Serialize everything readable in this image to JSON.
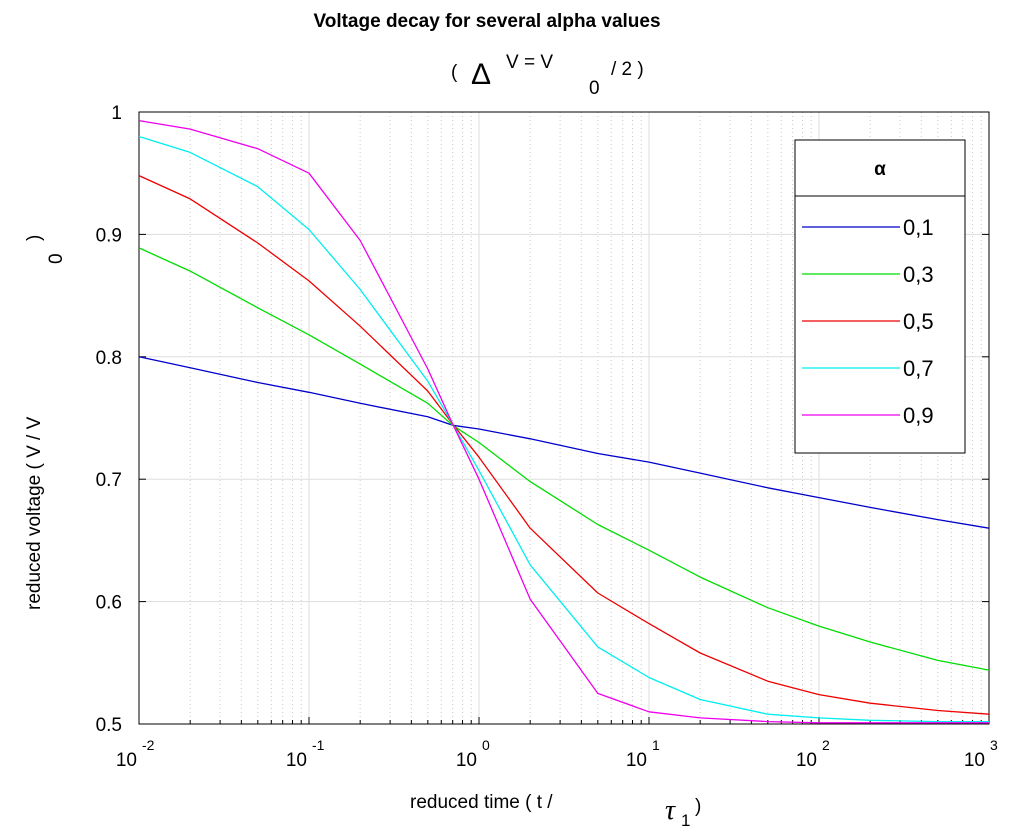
{
  "chart_data": {
    "type": "line",
    "title": "Voltage decay for several alpha values",
    "subtitle": {
      "open": "(",
      "delta": "Δ",
      "v_eq": "V = V",
      "zero": "0",
      "div2": "/ 2 )"
    },
    "xlabel": {
      "text": "reduced time ( t /",
      "tau": "τ",
      "sub": "1",
      "close": ")"
    },
    "ylabel": {
      "text": "reduced voltage ( V / V",
      "zero": "0",
      "close": ")"
    },
    "x_scale": "log",
    "xlim": [
      0.01,
      1000
    ],
    "ylim": [
      0.5,
      1.0
    ],
    "grid": true,
    "x_ticks": [
      {
        "base": "10",
        "exp": "-2",
        "value": 0.01
      },
      {
        "base": "10",
        "exp": "-1",
        "value": 0.1
      },
      {
        "base": "10",
        "exp": "0",
        "value": 1
      },
      {
        "base": "10",
        "exp": "1",
        "value": 10
      },
      {
        "base": "10",
        "exp": "2",
        "value": 100
      },
      {
        "base": "10",
        "exp": "3",
        "value": 1000
      }
    ],
    "y_ticks": [
      {
        "label": "0.5",
        "value": 0.5
      },
      {
        "label": "0.6",
        "value": 0.6
      },
      {
        "label": "0.7",
        "value": 0.7
      },
      {
        "label": "0.8",
        "value": 0.8
      },
      {
        "label": "0.9",
        "value": 0.9
      },
      {
        "label": "1",
        "value": 1.0
      }
    ],
    "legend_title": "α",
    "legend_position": "top-right",
    "x": [
      0.01,
      0.02,
      0.05,
      0.1,
      0.2,
      0.5,
      0.7,
      1,
      2,
      5,
      10,
      20,
      50,
      100,
      200,
      500,
      1000
    ],
    "series": [
      {
        "name": "0,1",
        "color": "#0000cc",
        "values": [
          0.8,
          0.791,
          0.779,
          0.771,
          0.762,
          0.751,
          0.744,
          0.741,
          0.733,
          0.721,
          0.714,
          0.705,
          0.693,
          0.685,
          0.677,
          0.667,
          0.66
        ]
      },
      {
        "name": "0,3",
        "color": "#00dd00",
        "values": [
          0.889,
          0.87,
          0.84,
          0.818,
          0.794,
          0.762,
          0.744,
          0.73,
          0.698,
          0.663,
          0.642,
          0.62,
          0.595,
          0.58,
          0.567,
          0.552,
          0.544
        ]
      },
      {
        "name": "0,5",
        "color": "#ee0000",
        "values": [
          0.948,
          0.929,
          0.893,
          0.862,
          0.825,
          0.772,
          0.745,
          0.718,
          0.66,
          0.607,
          0.582,
          0.558,
          0.535,
          0.524,
          0.517,
          0.511,
          0.508
        ]
      },
      {
        "name": "0,7",
        "color": "#00eeee",
        "values": [
          0.98,
          0.967,
          0.939,
          0.904,
          0.855,
          0.78,
          0.745,
          0.707,
          0.63,
          0.563,
          0.538,
          0.52,
          0.508,
          0.505,
          0.503,
          0.502,
          0.502
        ]
      },
      {
        "name": "0,9",
        "color": "#ee00ee",
        "values": [
          0.993,
          0.986,
          0.97,
          0.95,
          0.895,
          0.79,
          0.745,
          0.7,
          0.602,
          0.525,
          0.51,
          0.505,
          0.502,
          0.501,
          0.501,
          0.501,
          0.501
        ]
      }
    ]
  }
}
